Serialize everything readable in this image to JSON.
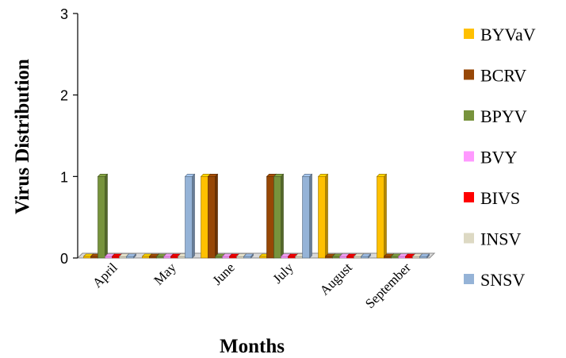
{
  "chart_data": {
    "type": "bar",
    "title": "",
    "xlabel": "Months",
    "ylabel": "Virus Distribution",
    "categories": [
      "April",
      "May",
      "June",
      "July",
      "August",
      "September"
    ],
    "ylim": [
      0,
      3
    ],
    "yticks": [
      0,
      1,
      2,
      3
    ],
    "grid": false,
    "legend_position": "right",
    "three_d": true,
    "series": [
      {
        "name": "BYVaV",
        "color": "#FFC000",
        "values": [
          0,
          0,
          1,
          0,
          1,
          1
        ]
      },
      {
        "name": "BCRV",
        "color": "#974706",
        "values": [
          0,
          0,
          1,
          1,
          0,
          0
        ]
      },
      {
        "name": "BPYV",
        "color": "#77933C",
        "values": [
          1,
          0,
          0,
          1,
          0,
          0
        ]
      },
      {
        "name": "BVY",
        "color": "#FF99FF",
        "values": [
          0,
          0,
          0,
          0,
          0,
          0
        ]
      },
      {
        "name": "BIVS",
        "color": "#FF0000",
        "values": [
          0,
          0,
          0,
          0,
          0,
          0
        ]
      },
      {
        "name": "INSV",
        "color": "#DDD9C3",
        "values": [
          0,
          0,
          0,
          0,
          0,
          0
        ]
      },
      {
        "name": "SNSV",
        "color": "#95B3D7",
        "values": [
          0,
          1,
          0,
          1,
          0,
          0
        ]
      }
    ]
  }
}
